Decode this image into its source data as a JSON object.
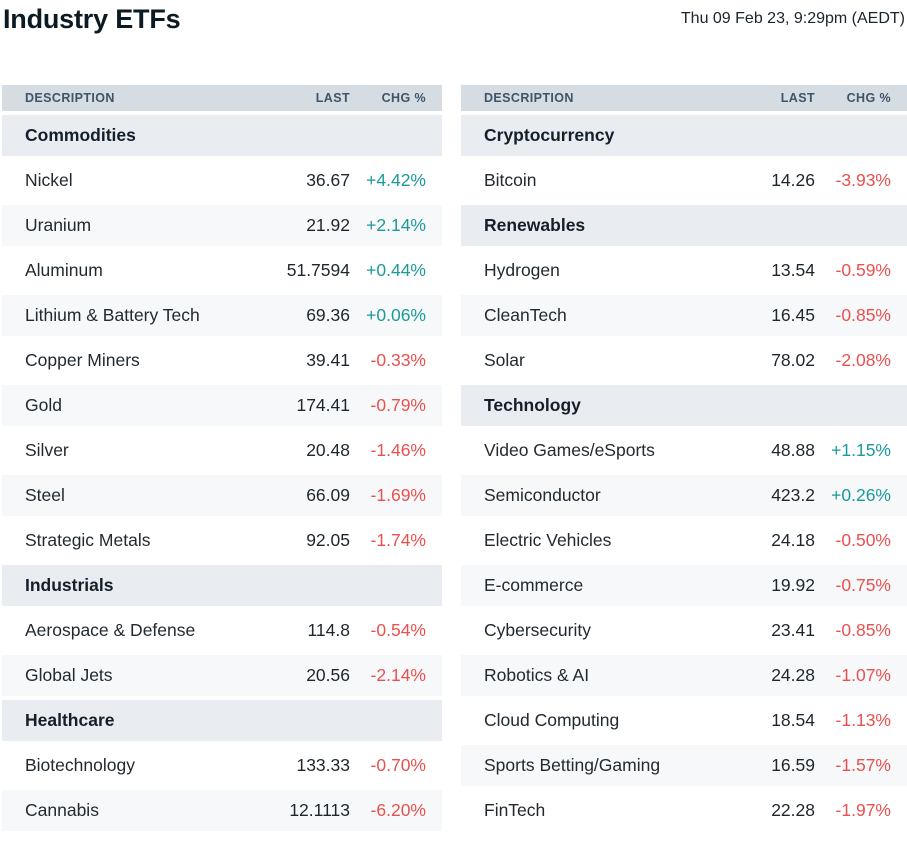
{
  "page": {
    "title": "Industry ETFs",
    "timestamp": "Thu 09 Feb 23, 9:29pm (AEDT)"
  },
  "columns": {
    "description": "DESCRIPTION",
    "last": "LAST",
    "chg": "CHG %"
  },
  "colors": {
    "positive": "#1b9a9a",
    "negative": "#e8514f",
    "column_header_bg": "#d5dce2",
    "section_row_bg": "#e9edf1",
    "alt_row_bg": "#f7f8f9"
  },
  "tables": [
    {
      "side": "left",
      "rows": [
        {
          "type": "section",
          "label": "Commodities"
        },
        {
          "type": "data",
          "label": "Nickel",
          "last": "36.67",
          "chg": "+4.42%",
          "direction": "up"
        },
        {
          "type": "data",
          "label": "Uranium",
          "last": "21.92",
          "chg": "+2.14%",
          "direction": "up"
        },
        {
          "type": "data",
          "label": "Aluminum",
          "last": "51.7594",
          "chg": "+0.44%",
          "direction": "up"
        },
        {
          "type": "data",
          "label": "Lithium & Battery Tech",
          "last": "69.36",
          "chg": "+0.06%",
          "direction": "up"
        },
        {
          "type": "data",
          "label": "Copper Miners",
          "last": "39.41",
          "chg": "-0.33%",
          "direction": "down"
        },
        {
          "type": "data",
          "label": "Gold",
          "last": "174.41",
          "chg": "-0.79%",
          "direction": "down"
        },
        {
          "type": "data",
          "label": "Silver",
          "last": "20.48",
          "chg": "-1.46%",
          "direction": "down"
        },
        {
          "type": "data",
          "label": "Steel",
          "last": "66.09",
          "chg": "-1.69%",
          "direction": "down"
        },
        {
          "type": "data",
          "label": "Strategic Metals",
          "last": "92.05",
          "chg": "-1.74%",
          "direction": "down"
        },
        {
          "type": "section",
          "label": "Industrials"
        },
        {
          "type": "data",
          "label": "Aerospace & Defense",
          "last": "114.8",
          "chg": "-0.54%",
          "direction": "down"
        },
        {
          "type": "data",
          "label": "Global Jets",
          "last": "20.56",
          "chg": "-2.14%",
          "direction": "down"
        },
        {
          "type": "section",
          "label": "Healthcare"
        },
        {
          "type": "data",
          "label": "Biotechnology",
          "last": "133.33",
          "chg": "-0.70%",
          "direction": "down"
        },
        {
          "type": "data",
          "label": "Cannabis",
          "last": "12.1113",
          "chg": "-6.20%",
          "direction": "down"
        }
      ]
    },
    {
      "side": "right",
      "rows": [
        {
          "type": "section",
          "label": "Cryptocurrency"
        },
        {
          "type": "data",
          "label": "Bitcoin",
          "last": "14.26",
          "chg": "-3.93%",
          "direction": "down"
        },
        {
          "type": "section",
          "label": "Renewables"
        },
        {
          "type": "data",
          "label": "Hydrogen",
          "last": "13.54",
          "chg": "-0.59%",
          "direction": "down"
        },
        {
          "type": "data",
          "label": "CleanTech",
          "last": "16.45",
          "chg": "-0.85%",
          "direction": "down"
        },
        {
          "type": "data",
          "label": "Solar",
          "last": "78.02",
          "chg": "-2.08%",
          "direction": "down"
        },
        {
          "type": "section",
          "label": "Technology"
        },
        {
          "type": "data",
          "label": "Video Games/eSports",
          "last": "48.88",
          "chg": "+1.15%",
          "direction": "up"
        },
        {
          "type": "data",
          "label": "Semiconductor",
          "last": "423.2",
          "chg": "+0.26%",
          "direction": "up"
        },
        {
          "type": "data",
          "label": "Electric Vehicles",
          "last": "24.18",
          "chg": "-0.50%",
          "direction": "down"
        },
        {
          "type": "data",
          "label": "E-commerce",
          "last": "19.92",
          "chg": "-0.75%",
          "direction": "down"
        },
        {
          "type": "data",
          "label": "Cybersecurity",
          "last": "23.41",
          "chg": "-0.85%",
          "direction": "down"
        },
        {
          "type": "data",
          "label": "Robotics & AI",
          "last": "24.28",
          "chg": "-1.07%",
          "direction": "down"
        },
        {
          "type": "data",
          "label": "Cloud Computing",
          "last": "18.54",
          "chg": "-1.13%",
          "direction": "down"
        },
        {
          "type": "data",
          "label": "Sports Betting/Gaming",
          "last": "16.59",
          "chg": "-1.57%",
          "direction": "down"
        },
        {
          "type": "data",
          "label": "FinTech",
          "last": "22.28",
          "chg": "-1.97%",
          "direction": "down"
        }
      ]
    }
  ]
}
